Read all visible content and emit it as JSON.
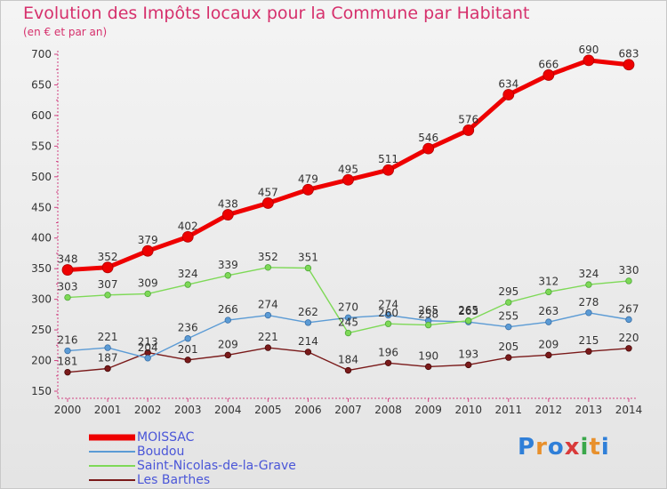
{
  "chart_data": {
    "type": "line",
    "title": "Evolution des Impôts locaux pour la Commune par Habitant",
    "subtitle": "(en € et par an)",
    "xlabel": "",
    "ylabel": "",
    "x": [
      "2000",
      "2001",
      "2002",
      "2003",
      "2004",
      "2005",
      "2006",
      "2007",
      "2008",
      "2009",
      "2010",
      "2011",
      "2012",
      "2013",
      "2014"
    ],
    "ylim": [
      150,
      700
    ],
    "yticks": [
      150,
      200,
      250,
      300,
      350,
      400,
      450,
      500,
      550,
      600,
      650,
      700
    ],
    "grid": false,
    "legend_position": "bottom-left",
    "series": [
      {
        "name": "MOISSAC",
        "color": "#ee0000",
        "values": [
          348,
          352,
          379,
          402,
          438,
          457,
          479,
          495,
          511,
          546,
          576,
          634,
          666,
          690,
          683
        ]
      },
      {
        "name": "Boudou",
        "color": "#5b9bd5",
        "values": [
          216,
          221,
          204,
          236,
          266,
          274,
          262,
          270,
          274,
          265,
          263,
          255,
          263,
          278,
          267
        ]
      },
      {
        "name": "Saint-Nicolas-de-la-Grave",
        "color": "#7ed957",
        "values": [
          303,
          307,
          309,
          324,
          339,
          352,
          351,
          245,
          260,
          258,
          265,
          295,
          312,
          324,
          330
        ]
      },
      {
        "name": "Les Barthes",
        "color": "#7a1a1a",
        "values": [
          181,
          187,
          213,
          201,
          209,
          221,
          214,
          184,
          196,
          190,
          193,
          205,
          209,
          215,
          220
        ]
      }
    ]
  },
  "logo": {
    "text": "Proxiti",
    "letters": [
      "P",
      "r",
      "o",
      "x",
      "i",
      "t",
      "i"
    ],
    "colors": [
      "#2f7fd8",
      "#e8902c",
      "#2f7fd8",
      "#d93a3a",
      "#3aa84a",
      "#e8902c",
      "#2f7fd8"
    ]
  }
}
